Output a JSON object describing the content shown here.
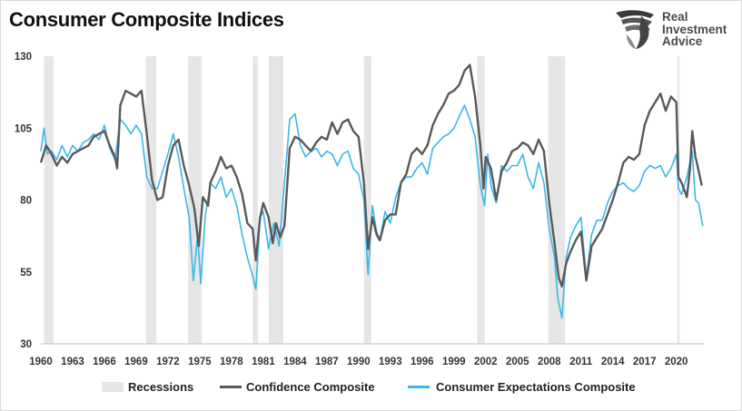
{
  "title": "Consumer Composite Indices",
  "logo": {
    "line1": "Real",
    "line2": "Investment",
    "line3": "Advice"
  },
  "legend": {
    "recessions": "Recessions",
    "confidence": "Confidence Composite",
    "expectations": "Consumer Expectations Composite"
  },
  "colors": {
    "confidence": "#595959",
    "expectations": "#3cb7ea",
    "recession": "#e6e6e6",
    "axis": "#bfbfbf"
  },
  "chart_data": {
    "type": "line",
    "title": "Consumer Composite Indices",
    "xlabel": "",
    "ylabel": "",
    "xlim": [
      1960,
      2022.6
    ],
    "ylim": [
      30,
      130
    ],
    "yticks": [
      30,
      55,
      80,
      105,
      130
    ],
    "xticks": [
      "1960",
      "1963",
      "1966",
      "1969",
      "1972",
      "1975",
      "1978",
      "1981",
      "1984",
      "1987",
      "1990",
      "1993",
      "1996",
      "1999",
      "2002",
      "2005",
      "2008",
      "2011",
      "2014",
      "2017",
      "2020"
    ],
    "grid": false,
    "legend_position": "bottom",
    "recessions": [
      [
        1960.3,
        1961.2
      ],
      [
        1969.9,
        1970.9
      ],
      [
        1973.9,
        1975.2
      ],
      [
        1980.0,
        1980.5
      ],
      [
        1981.5,
        1982.9
      ],
      [
        1990.5,
        1991.2
      ],
      [
        2001.2,
        2001.9
      ],
      [
        2007.9,
        2009.5
      ],
      [
        2020.1,
        2020.3
      ]
    ],
    "series": [
      {
        "name": "Confidence Composite",
        "points": [
          [
            1960,
            93
          ],
          [
            1960.5,
            99
          ],
          [
            1961,
            96
          ],
          [
            1961.5,
            92
          ],
          [
            1962,
            95
          ],
          [
            1962.5,
            93
          ],
          [
            1963,
            96
          ],
          [
            1963.5,
            97
          ],
          [
            1964,
            98
          ],
          [
            1964.5,
            99
          ],
          [
            1965,
            102
          ],
          [
            1965.5,
            103
          ],
          [
            1966,
            104
          ],
          [
            1966.5,
            99
          ],
          [
            1967,
            95
          ],
          [
            1967.2,
            91
          ],
          [
            1967.5,
            113
          ],
          [
            1968,
            118
          ],
          [
            1968.5,
            117
          ],
          [
            1969,
            116
          ],
          [
            1969.5,
            118
          ],
          [
            1970,
            103
          ],
          [
            1970.5,
            87
          ],
          [
            1971,
            80
          ],
          [
            1971.5,
            81
          ],
          [
            1972,
            92
          ],
          [
            1972.5,
            99
          ],
          [
            1973,
            101
          ],
          [
            1973.5,
            92
          ],
          [
            1974,
            85
          ],
          [
            1974.5,
            77
          ],
          [
            1974.9,
            64
          ],
          [
            1975.3,
            81
          ],
          [
            1975.8,
            78
          ],
          [
            1976,
            86
          ],
          [
            1976.5,
            90
          ],
          [
            1977,
            95
          ],
          [
            1977.5,
            91
          ],
          [
            1978,
            92
          ],
          [
            1978.5,
            88
          ],
          [
            1979,
            82
          ],
          [
            1979.5,
            72
          ],
          [
            1980,
            70
          ],
          [
            1980.3,
            59
          ],
          [
            1980.7,
            74
          ],
          [
            1981,
            79
          ],
          [
            1981.5,
            74
          ],
          [
            1981.9,
            65
          ],
          [
            1982.2,
            72
          ],
          [
            1982.6,
            67
          ],
          [
            1983,
            71
          ],
          [
            1983.5,
            98
          ],
          [
            1984,
            102
          ],
          [
            1984.5,
            101
          ],
          [
            1985,
            99
          ],
          [
            1985.5,
            97
          ],
          [
            1986,
            100
          ],
          [
            1986.5,
            102
          ],
          [
            1987,
            101
          ],
          [
            1987.5,
            107
          ],
          [
            1988,
            103
          ],
          [
            1988.5,
            107
          ],
          [
            1989,
            108
          ],
          [
            1989.5,
            104
          ],
          [
            1990,
            102
          ],
          [
            1990.5,
            86
          ],
          [
            1990.9,
            63
          ],
          [
            1991.3,
            74
          ],
          [
            1991.7,
            68
          ],
          [
            1992,
            66
          ],
          [
            1992.5,
            73
          ],
          [
            1993,
            75
          ],
          [
            1993.5,
            75
          ],
          [
            1994,
            86
          ],
          [
            1994.5,
            89
          ],
          [
            1995,
            96
          ],
          [
            1995.5,
            98
          ],
          [
            1996,
            96
          ],
          [
            1996.5,
            99
          ],
          [
            1997,
            106
          ],
          [
            1997.5,
            110
          ],
          [
            1998,
            113
          ],
          [
            1998.5,
            117
          ],
          [
            1999,
            118
          ],
          [
            1999.5,
            120
          ],
          [
            2000,
            125
          ],
          [
            2000.5,
            127
          ],
          [
            2001,
            116
          ],
          [
            2001.5,
            99
          ],
          [
            2001.8,
            84
          ],
          [
            2002,
            95
          ],
          [
            2002.5,
            91
          ],
          [
            2003,
            80
          ],
          [
            2003.5,
            90
          ],
          [
            2004,
            93
          ],
          [
            2004.5,
            97
          ],
          [
            2005,
            98
          ],
          [
            2005.5,
            100
          ],
          [
            2006,
            99
          ],
          [
            2006.5,
            96
          ],
          [
            2007,
            101
          ],
          [
            2007.5,
            97
          ],
          [
            2008,
            79
          ],
          [
            2008.5,
            65
          ],
          [
            2008.9,
            53
          ],
          [
            2009.2,
            50
          ],
          [
            2009.6,
            58
          ],
          [
            2010,
            62
          ],
          [
            2010.5,
            66
          ],
          [
            2011,
            69
          ],
          [
            2011.5,
            52
          ],
          [
            2012,
            64
          ],
          [
            2012.5,
            67
          ],
          [
            2013,
            70
          ],
          [
            2013.5,
            75
          ],
          [
            2014,
            80
          ],
          [
            2014.5,
            86
          ],
          [
            2015,
            93
          ],
          [
            2015.5,
            95
          ],
          [
            2016,
            94
          ],
          [
            2016.5,
            96
          ],
          [
            2017,
            106
          ],
          [
            2017.5,
            111
          ],
          [
            2018,
            114
          ],
          [
            2018.5,
            117
          ],
          [
            2019,
            111
          ],
          [
            2019.5,
            116
          ],
          [
            2020,
            114
          ],
          [
            2020.2,
            88
          ],
          [
            2020.5,
            86
          ],
          [
            2021,
            81
          ],
          [
            2021.3,
            91
          ],
          [
            2021.5,
            104
          ],
          [
            2021.8,
            95
          ],
          [
            2022,
            92
          ],
          [
            2022.4,
            85
          ]
        ]
      },
      {
        "name": "Consumer Expectations Composite",
        "points": [
          [
            1960,
            97
          ],
          [
            1960.3,
            105
          ],
          [
            1960.6,
            96
          ],
          [
            1961,
            97
          ],
          [
            1961.5,
            94
          ],
          [
            1962,
            99
          ],
          [
            1962.5,
            95
          ],
          [
            1963,
            99
          ],
          [
            1963.5,
            97
          ],
          [
            1964,
            100
          ],
          [
            1964.5,
            101
          ],
          [
            1965,
            103
          ],
          [
            1965.5,
            101
          ],
          [
            1966,
            106
          ],
          [
            1966.5,
            98
          ],
          [
            1967,
            94
          ],
          [
            1967.5,
            108
          ],
          [
            1968,
            106
          ],
          [
            1968.5,
            103
          ],
          [
            1969,
            106
          ],
          [
            1969.5,
            103
          ],
          [
            1970,
            88
          ],
          [
            1970.5,
            84
          ],
          [
            1971,
            84
          ],
          [
            1971.5,
            90
          ],
          [
            1972,
            96
          ],
          [
            1972.5,
            103
          ],
          [
            1973,
            95
          ],
          [
            1973.5,
            84
          ],
          [
            1974,
            74
          ],
          [
            1974.4,
            52
          ],
          [
            1974.8,
            68
          ],
          [
            1975.1,
            51
          ],
          [
            1975.5,
            74
          ],
          [
            1976,
            86
          ],
          [
            1976.5,
            84
          ],
          [
            1977,
            88
          ],
          [
            1977.5,
            81
          ],
          [
            1978,
            84
          ],
          [
            1978.5,
            78
          ],
          [
            1979,
            68
          ],
          [
            1979.5,
            60
          ],
          [
            1979.9,
            55
          ],
          [
            1980.3,
            49
          ],
          [
            1980.7,
            74
          ],
          [
            1981,
            76
          ],
          [
            1981.5,
            63
          ],
          [
            1982,
            72
          ],
          [
            1982.5,
            64
          ],
          [
            1983,
            86
          ],
          [
            1983.5,
            108
          ],
          [
            1984,
            110
          ],
          [
            1984.5,
            99
          ],
          [
            1985,
            95
          ],
          [
            1985.5,
            97
          ],
          [
            1986,
            98
          ],
          [
            1986.5,
            95
          ],
          [
            1987,
            97
          ],
          [
            1987.5,
            96
          ],
          [
            1988,
            92
          ],
          [
            1988.5,
            96
          ],
          [
            1989,
            97
          ],
          [
            1989.5,
            91
          ],
          [
            1990,
            89
          ],
          [
            1990.5,
            80
          ],
          [
            1990.9,
            54
          ],
          [
            1991.3,
            78
          ],
          [
            1991.7,
            69
          ],
          [
            1992,
            66
          ],
          [
            1992.5,
            76
          ],
          [
            1993,
            72
          ],
          [
            1993.5,
            81
          ],
          [
            1994,
            86
          ],
          [
            1994.5,
            88
          ],
          [
            1995,
            88
          ],
          [
            1995.5,
            91
          ],
          [
            1996,
            93
          ],
          [
            1996.5,
            89
          ],
          [
            1997,
            98
          ],
          [
            1997.5,
            100
          ],
          [
            1998,
            102
          ],
          [
            1998.5,
            103
          ],
          [
            1999,
            105
          ],
          [
            1999.5,
            109
          ],
          [
            2000,
            113
          ],
          [
            2000.5,
            108
          ],
          [
            2001,
            102
          ],
          [
            2001.5,
            85
          ],
          [
            2001.9,
            78
          ],
          [
            2002.2,
            96
          ],
          [
            2002.5,
            85
          ],
          [
            2003,
            79
          ],
          [
            2003.5,
            92
          ],
          [
            2004,
            90
          ],
          [
            2004.5,
            92
          ],
          [
            2005,
            92
          ],
          [
            2005.5,
            96
          ],
          [
            2006,
            88
          ],
          [
            2006.5,
            84
          ],
          [
            2007,
            93
          ],
          [
            2007.5,
            86
          ],
          [
            2008,
            70
          ],
          [
            2008.5,
            60
          ],
          [
            2008.8,
            46
          ],
          [
            2009.2,
            39
          ],
          [
            2009.6,
            60
          ],
          [
            2010,
            67
          ],
          [
            2010.5,
            71
          ],
          [
            2011,
            74
          ],
          [
            2011.5,
            53
          ],
          [
            2012,
            68
          ],
          [
            2012.5,
            73
          ],
          [
            2013,
            73
          ],
          [
            2013.5,
            79
          ],
          [
            2014,
            83
          ],
          [
            2014.5,
            85
          ],
          [
            2015,
            86
          ],
          [
            2015.5,
            84
          ],
          [
            2016,
            83
          ],
          [
            2016.5,
            85
          ],
          [
            2017,
            90
          ],
          [
            2017.5,
            92
          ],
          [
            2018,
            91
          ],
          [
            2018.5,
            92
          ],
          [
            2019,
            88
          ],
          [
            2019.5,
            91
          ],
          [
            2020,
            96
          ],
          [
            2020.2,
            84
          ],
          [
            2020.5,
            82
          ],
          [
            2021,
            88
          ],
          [
            2021.5,
            97
          ],
          [
            2021.8,
            80
          ],
          [
            2022.1,
            79
          ],
          [
            2022.5,
            71
          ]
        ]
      }
    ]
  }
}
